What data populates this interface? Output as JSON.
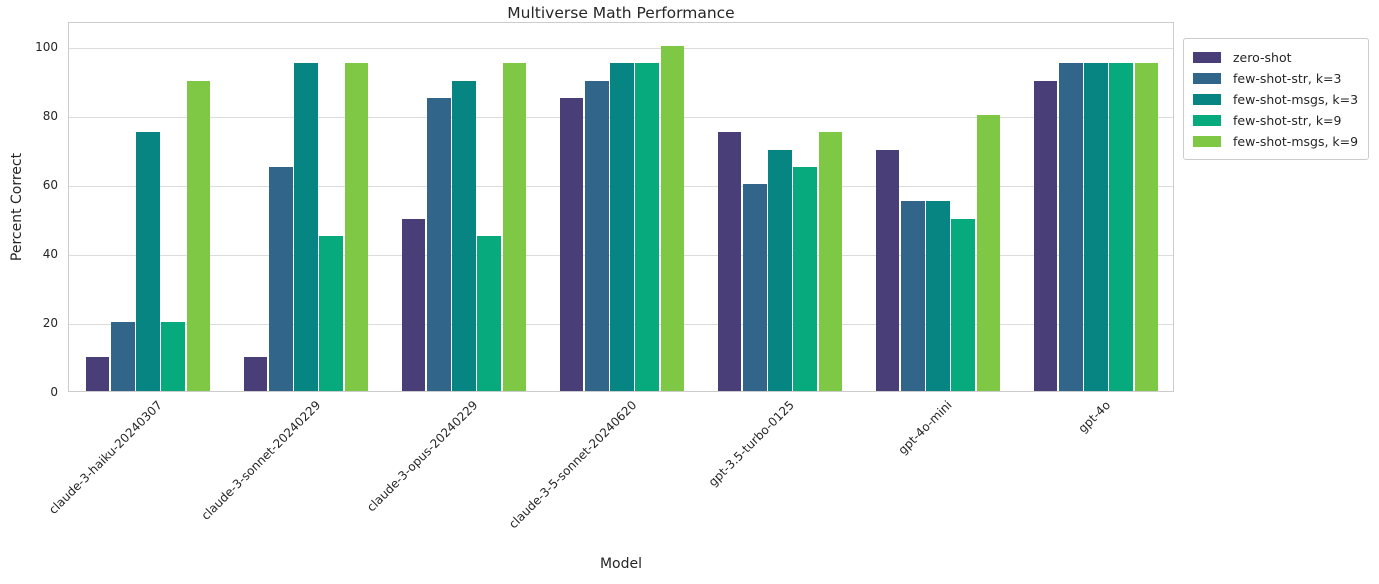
{
  "chart_data": {
    "type": "bar",
    "title": "Multiverse Math Performance",
    "xlabel": "Model",
    "ylabel": "Percent Correct",
    "ylim": [
      0,
      107
    ],
    "yticks": [
      0,
      20,
      40,
      60,
      80,
      100
    ],
    "grid": true,
    "grid_color": "#dcdcdc",
    "spine_color": "#cccccc",
    "text_color": "#262626",
    "legend_position": "outside-upper-right",
    "categories": [
      "claude-3-haiku-20240307",
      "claude-3-sonnet-20240229",
      "claude-3-opus-20240229",
      "claude-3-5-sonnet-20240620",
      "gpt-3.5-turbo-0125",
      "gpt-4o-mini",
      "gpt-4o"
    ],
    "series": [
      {
        "name": "zero-shot",
        "color": "#4a3e78",
        "values": [
          10,
          10,
          50,
          85,
          75,
          70,
          90
        ]
      },
      {
        "name": "few-shot-str, k=3",
        "color": "#32658a",
        "values": [
          20,
          65,
          85,
          90,
          60,
          55,
          95
        ]
      },
      {
        "name": "few-shot-msgs, k=3",
        "color": "#068582",
        "values": [
          75,
          95,
          90,
          95,
          70,
          55,
          95
        ]
      },
      {
        "name": "few-shot-str, k=9",
        "color": "#06aa7d",
        "values": [
          20,
          45,
          45,
          95,
          65,
          50,
          95
        ]
      },
      {
        "name": "few-shot-msgs, k=9",
        "color": "#7fc845",
        "values": [
          90,
          95,
          95,
          100,
          75,
          80,
          95
        ]
      }
    ]
  }
}
